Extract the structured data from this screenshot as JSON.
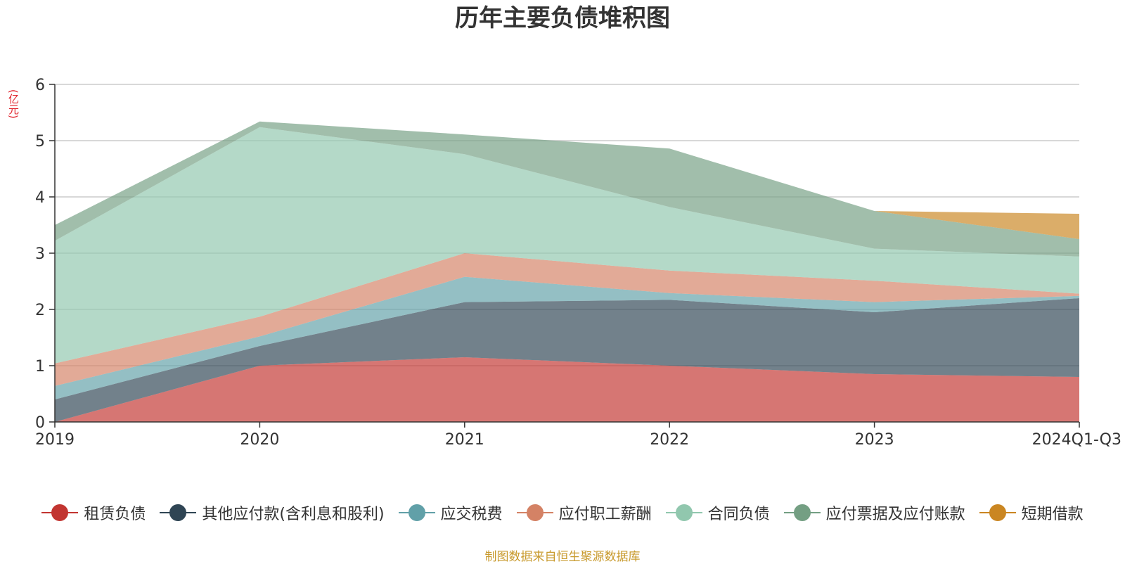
{
  "chart_data": {
    "type": "area",
    "stacked": true,
    "title": "历年主要负债堆积图",
    "unit": "(亿元)",
    "categories": [
      "2019",
      "2020",
      "2021",
      "2022",
      "2023",
      "2024Q1-Q3"
    ],
    "ylim": [
      0,
      6
    ],
    "yticks": [
      0,
      1,
      2,
      3,
      4,
      5,
      6
    ],
    "grid": true,
    "legend_position": "bottom",
    "series": [
      {
        "name": "租赁负债",
        "color": "#c23531",
        "values": [
          0.0,
          1.0,
          1.15,
          1.0,
          0.85,
          0.8
        ]
      },
      {
        "name": "其他应付款(含利息和股利)",
        "color": "#2f4554",
        "values": [
          0.4,
          0.35,
          0.98,
          1.17,
          1.1,
          1.4
        ]
      },
      {
        "name": "应交税费",
        "color": "#61a0a8",
        "values": [
          0.24,
          0.17,
          0.45,
          0.12,
          0.18,
          0.04
        ]
      },
      {
        "name": "应付职工薪酬",
        "color": "#d48265",
        "values": [
          0.4,
          0.35,
          0.42,
          0.4,
          0.38,
          0.04
        ]
      },
      {
        "name": "合同负债",
        "color": "#91c7ae",
        "values": [
          2.18,
          3.37,
          1.76,
          1.13,
          0.57,
          0.66
        ]
      },
      {
        "name": "应付票据及应付账款",
        "color": "#749f83",
        "values": [
          0.28,
          0.1,
          0.35,
          1.04,
          0.67,
          0.31
        ]
      },
      {
        "name": "短期借款",
        "color": "#ca8622",
        "values": [
          0.0,
          0.0,
          0.0,
          0.0,
          0.0,
          0.45
        ]
      }
    ]
  },
  "source": "制图数据来自恒生聚源数据库",
  "colors": {
    "unit": "#e0222b",
    "source": "#c89a2d",
    "axis": "#333333",
    "grid": "#cccccc"
  }
}
